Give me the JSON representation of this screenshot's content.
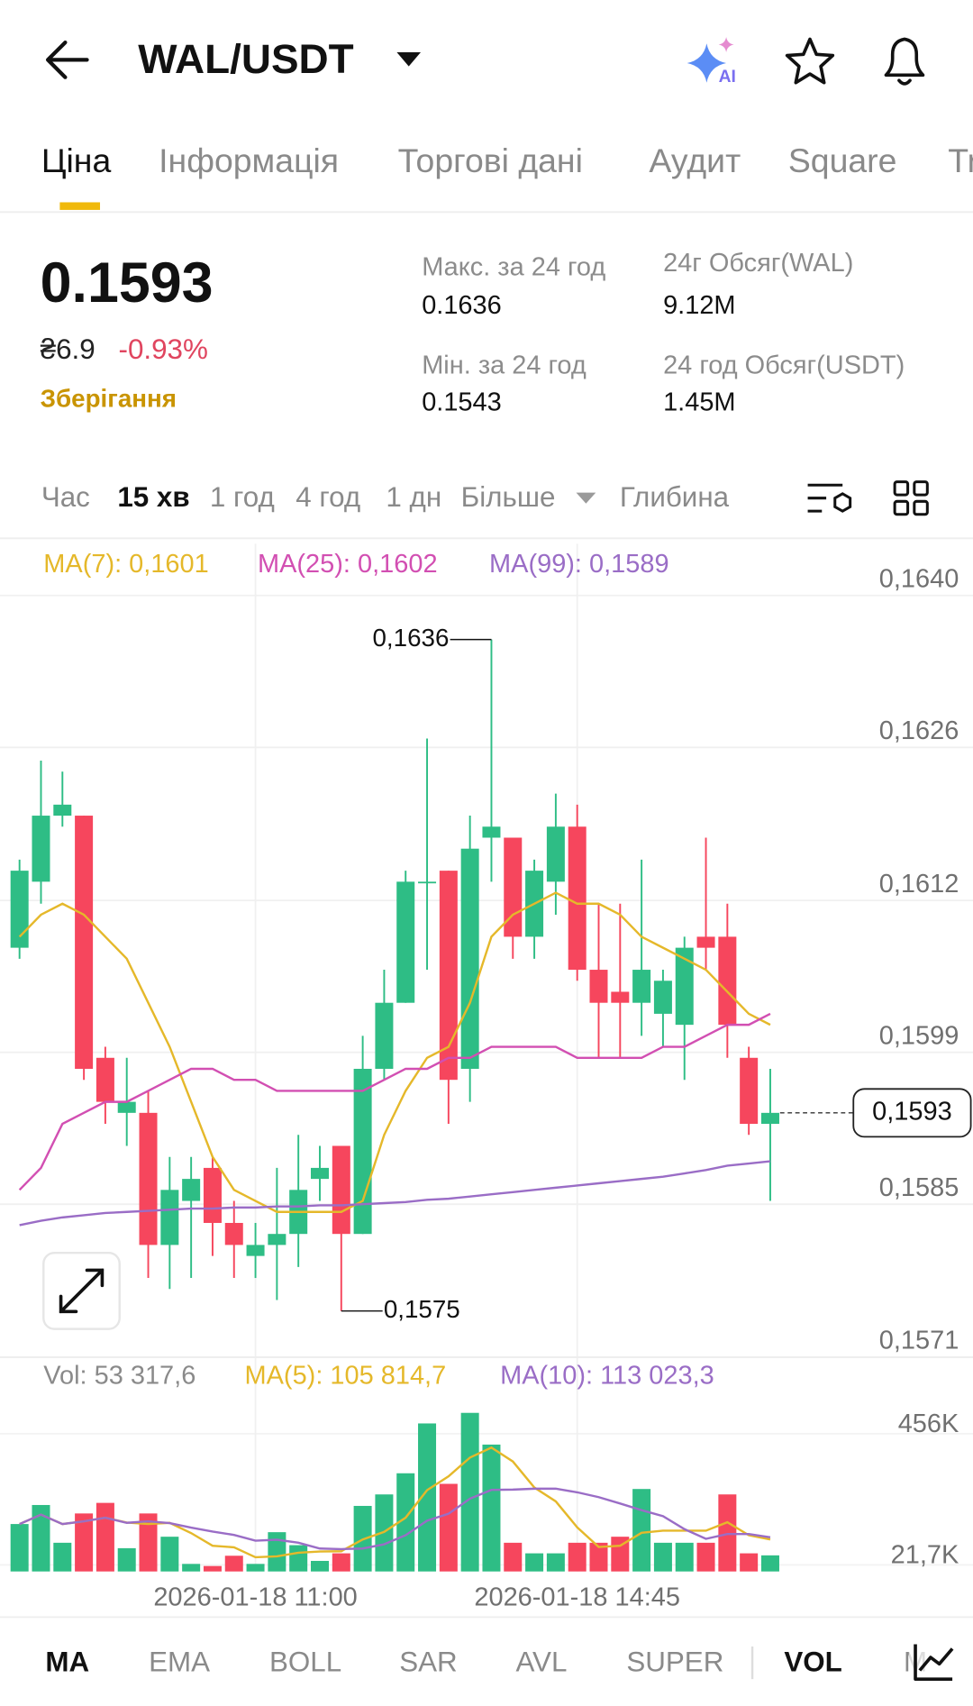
{
  "header": {
    "title": "WAL/USDT",
    "ai_badge": "AI"
  },
  "tabs": [
    "Ціна",
    "Інформація",
    "Торгові дані",
    "Аудит",
    "Square",
    "Tr"
  ],
  "summary": {
    "price": "0.1593",
    "fiat": "₴6.9",
    "change": "-0.93%",
    "tag": "Зберігання"
  },
  "stats": [
    {
      "label": "Макс. за 24 год",
      "value": "0.1636"
    },
    {
      "label": "24г Обсяг(WAL)",
      "value": "9.12M"
    },
    {
      "label": "Мін. за 24 год",
      "value": "0.1543"
    },
    {
      "label": "24 год Обсяг(USDT)",
      "value": "1.45M"
    }
  ],
  "intervals": [
    "Час",
    "15 хв",
    "1 год",
    "4 год",
    "1 дн",
    "Більше",
    "Глибина"
  ],
  "chart_data": [
    {
      "type": "candlestick",
      "colors": {
        "up": "#2ebd85",
        "down": "#f6465d"
      },
      "open": [
        0.1608,
        0.1614,
        0.162,
        0.162,
        0.1598,
        0.1593,
        0.1593,
        0.1581,
        0.1585,
        0.1588,
        0.1583,
        0.158,
        0.1581,
        0.1582,
        0.1587,
        0.159,
        0.1582,
        0.1597,
        0.1603,
        0.1614,
        0.1615,
        0.1597,
        0.1618,
        0.1618,
        0.1609,
        0.1614,
        0.1619,
        0.1606,
        0.1604,
        0.1603,
        0.1602,
        0.1601,
        0.1609,
        0.1609,
        0.1598,
        0.1592
      ],
      "high": [
        0.1616,
        0.1625,
        0.1624,
        0.162,
        0.1599,
        0.1598,
        0.1595,
        0.1589,
        0.1589,
        0.1589,
        0.1585,
        0.1583,
        0.1588,
        0.1591,
        0.159,
        0.159,
        0.16,
        0.1606,
        0.1615,
        0.1627,
        0.1615,
        0.162,
        0.1636,
        0.1618,
        0.1616,
        0.1622,
        0.1621,
        0.1612,
        0.1612,
        0.1616,
        0.1606,
        0.1609,
        0.1618,
        0.1612,
        0.1599,
        0.1597
      ],
      "low": [
        0.1607,
        0.1612,
        0.1619,
        0.1596,
        0.1592,
        0.159,
        0.1578,
        0.1577,
        0.1578,
        0.158,
        0.1578,
        0.1578,
        0.1576,
        0.1579,
        0.1585,
        0.1575,
        0.1582,
        0.1596,
        0.1603,
        0.1606,
        0.1592,
        0.1594,
        0.1614,
        0.1607,
        0.1607,
        0.1611,
        0.1605,
        0.1598,
        0.1598,
        0.16,
        0.1599,
        0.1596,
        0.1606,
        0.1598,
        0.1591,
        0.1585
      ],
      "close": [
        0.1615,
        0.162,
        0.1621,
        0.1597,
        0.1594,
        0.1594,
        0.1581,
        0.1586,
        0.1587,
        0.1583,
        0.1581,
        0.1581,
        0.1582,
        0.1586,
        0.1588,
        0.1582,
        0.1597,
        0.1603,
        0.1614,
        0.1614,
        0.1596,
        0.1617,
        0.1619,
        0.1609,
        0.1615,
        0.1619,
        0.1606,
        0.1603,
        0.1603,
        0.1606,
        0.1605,
        0.1608,
        0.1608,
        0.1601,
        0.1592,
        0.1593
      ],
      "series": [
        {
          "name": "MA(7): 0,1601",
          "color": "#e5b82a",
          "values": [
            0.1609,
            0.1611,
            0.1612,
            0.1611,
            0.1609,
            0.1607,
            0.1603,
            0.1599,
            0.1594,
            0.1589,
            0.1586,
            0.1585,
            0.1584,
            0.1584,
            0.1584,
            0.1584,
            0.1585,
            0.1591,
            0.1595,
            0.1598,
            0.1599,
            0.1603,
            0.1609,
            0.1611,
            0.1612,
            0.1613,
            0.1612,
            0.1612,
            0.1611,
            0.1609,
            0.1608,
            0.1607,
            0.1606,
            0.1604,
            0.1602,
            0.1601
          ]
        },
        {
          "name": "MA(25): 0,1602",
          "color": "#d24fb2",
          "values": [
            0.1586,
            0.1588,
            0.1592,
            0.1593,
            0.1594,
            0.1594,
            0.1595,
            0.1596,
            0.1597,
            0.1597,
            0.1596,
            0.1596,
            0.1595,
            0.1595,
            0.1595,
            0.1595,
            0.1595,
            0.1596,
            0.1597,
            0.1597,
            0.1598,
            0.1598,
            0.1599,
            0.1599,
            0.1599,
            0.1599,
            0.1598,
            0.1598,
            0.1598,
            0.1598,
            0.1599,
            0.1599,
            0.16,
            0.1601,
            0.1601,
            0.1602
          ]
        },
        {
          "name": "MA(99): 0,1589",
          "color": "#9a6dc6",
          "values": [
            0.15828,
            0.15832,
            0.15835,
            0.15837,
            0.15839,
            0.1584,
            0.15841,
            0.15842,
            0.15843,
            0.15843,
            0.15844,
            0.15844,
            0.15845,
            0.15845,
            0.15846,
            0.15846,
            0.15847,
            0.15848,
            0.15849,
            0.15851,
            0.15852,
            0.15854,
            0.15856,
            0.15858,
            0.1586,
            0.15862,
            0.15864,
            0.15866,
            0.15868,
            0.1587,
            0.15872,
            0.15875,
            0.15878,
            0.15882,
            0.15884,
            0.15886
          ]
        }
      ],
      "ylim": [
        0.15708,
        0.16447
      ],
      "yticks": [
        {
          "value": 0.164,
          "label": "0,1640"
        },
        {
          "value": 0.16262,
          "label": "0,1626"
        },
        {
          "value": 0.16123,
          "label": "0,1612"
        },
        {
          "value": 0.15985,
          "label": "0,1599"
        },
        {
          "value": 0.15847,
          "label": "0,1585"
        },
        {
          "value": 0.15708,
          "label": "0,1571"
        }
      ],
      "grid": true,
      "high_label": {
        "value": 0.1636,
        "label": "0,1636"
      },
      "low_label": {
        "value": 0.1575,
        "label": "0,1575"
      },
      "last_price": {
        "value": 0.1593,
        "label": "0,1593"
      }
    },
    {
      "type": "bar",
      "title": "Vol: 53 317,6",
      "categories": [
        null,
        null,
        null,
        null,
        null,
        null,
        null,
        null,
        null,
        null,
        null,
        "2026-01-18 11:00",
        null,
        null,
        null,
        null,
        null,
        null,
        null,
        null,
        null,
        null,
        null,
        null,
        null,
        null,
        "2026-01-18 14:45",
        null,
        null,
        null,
        null,
        null,
        null,
        null,
        null,
        null
      ],
      "values": [
        157000,
        220000,
        95000,
        192000,
        227000,
        77000,
        192000,
        115000,
        25000,
        18000,
        52000,
        25000,
        130000,
        87000,
        35000,
        60000,
        217000,
        255000,
        325000,
        490000,
        290000,
        525000,
        420000,
        95000,
        60000,
        60000,
        95000,
        95000,
        115000,
        273000,
        95000,
        95000,
        95000,
        255000,
        60000,
        53317.6
      ],
      "series": [
        {
          "name": "MA(5): 105 814,7",
          "color": "#e5b82a",
          "values": [
            157000,
            188000,
            157000,
            166000,
            178000,
            162000,
            157000,
            161000,
            127000,
            85000,
            80000,
            47000,
            50000,
            62000,
            66000,
            67000,
            106000,
            131000,
            178000,
            269000,
            315000,
            377000,
            410000,
            364000,
            278000,
            232000,
            146000,
            81000,
            85000,
            128000,
            135000,
            135000,
            135000,
            163000,
            120000,
            105814.7
          ]
        },
        {
          "name": "MA(10): 113 023,3",
          "color": "#9a6dc6",
          "values": [
            157000,
            188000,
            157000,
            166000,
            178000,
            161000,
            166000,
            160000,
            145000,
            132000,
            121000,
            102000,
            105000,
            95000,
            76000,
            74000,
            76000,
            90000,
            120000,
            168000,
            191000,
            241000,
            270000,
            271000,
            274000,
            274000,
            262000,
            246000,
            225000,
            203000,
            183000,
            140000,
            108000,
            124000,
            124000,
            113023.3
          ]
        }
      ],
      "ylim": [
        0,
        540000
      ],
      "yticks": [
        {
          "value": 21700,
          "label": "21,7K"
        },
        {
          "value": 456000,
          "label": "456K"
        }
      ],
      "grid": true
    }
  ],
  "indicators": [
    "MA",
    "EMA",
    "BOLL",
    "SAR",
    "AVL",
    "SUPER",
    "VOL",
    "M"
  ]
}
